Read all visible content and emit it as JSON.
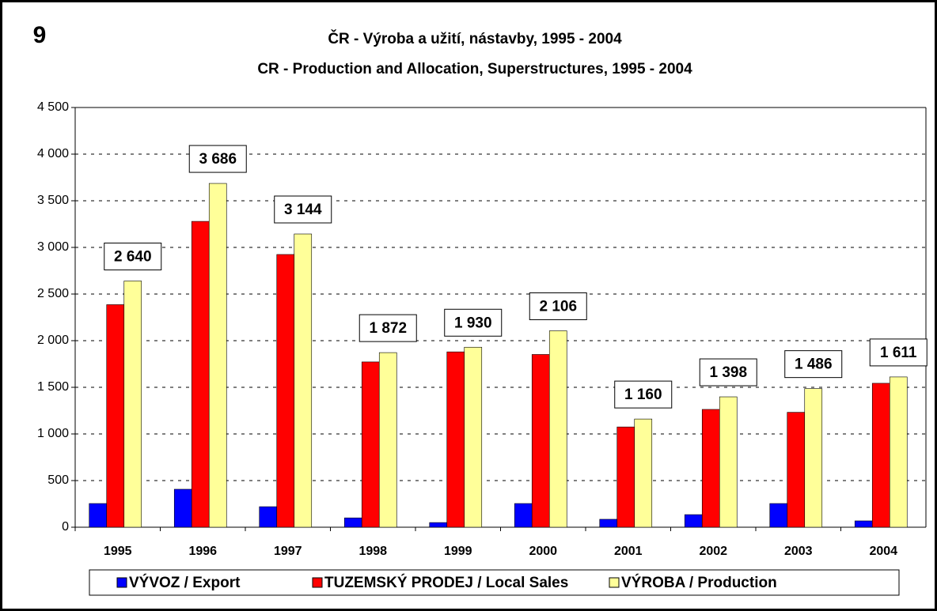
{
  "chart_data": {
    "type": "bar",
    "number": "9",
    "title": "ČR - Výroba a užití, nástavby, 1995 - 2004",
    "subtitle": "CR - Production and Allocation, Superstructures, 1995 - 2004",
    "categories": [
      "1995",
      "1996",
      "1997",
      "1998",
      "1999",
      "2000",
      "2001",
      "2002",
      "2003",
      "2004"
    ],
    "series": [
      {
        "name": "VÝVOZ / Export",
        "color": "#0000ff",
        "values": [
          254,
          407,
          220,
          100,
          50,
          254,
          85,
          135,
          254,
          68
        ]
      },
      {
        "name": "TUZEMSKÝ PRODEJ / Local Sales",
        "color": "#ff0000",
        "values": [
          2386,
          3279,
          2924,
          1772,
          1880,
          1852,
          1075,
          1263,
          1232,
          1543
        ]
      },
      {
        "name": "VÝROBA / Production",
        "color": "#ffff99",
        "values": [
          2640,
          3686,
          3144,
          1872,
          1930,
          2106,
          1160,
          1398,
          1486,
          1611
        ],
        "value_labels": [
          "2 640",
          "3 686",
          "3 144",
          "1 872",
          "1 930",
          "2 106",
          "1 160",
          "1 398",
          "1 486",
          "1 611"
        ]
      }
    ],
    "ylim": [
      0,
      4500
    ],
    "yticks": [
      0,
      500,
      {
        "value": 1000,
        "label": "1 000"
      },
      {
        "value": 1500,
        "label": "1 500"
      },
      {
        "value": 2000,
        "label": "2 000"
      },
      {
        "value": 2500,
        "label": "2 500"
      },
      {
        "value": 3000,
        "label": "3 000"
      },
      {
        "value": 3500,
        "label": "3 500"
      },
      {
        "value": 4000,
        "label": "4 000"
      },
      {
        "value": 4500,
        "label": "4 500"
      }
    ],
    "grid": true,
    "legend": "bottom"
  }
}
